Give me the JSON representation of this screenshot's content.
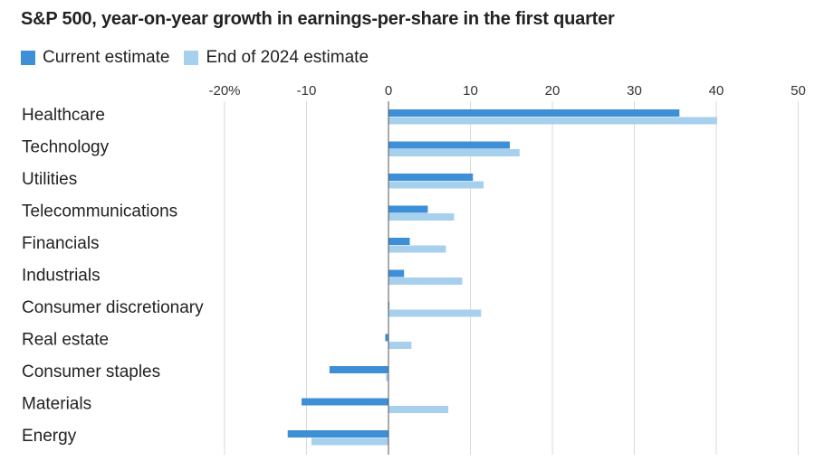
{
  "chart_data": {
    "type": "bar",
    "orientation": "horizontal",
    "title": "S&P 500, year-on-year growth in earnings-per-share in the first quarter",
    "xlabel": "",
    "ylabel": "",
    "xlim": [
      -20,
      50
    ],
    "grid": true,
    "legend_position": "top-left",
    "x_ticks": [
      -20,
      -10,
      0,
      10,
      20,
      30,
      40,
      50
    ],
    "x_tick_labels": [
      "-20%",
      "-10",
      "0",
      "10",
      "20",
      "30",
      "40",
      "50"
    ],
    "categories": [
      "Healthcare",
      "Technology",
      "Utilities",
      "Telecommunications",
      "Financials",
      "Industrials",
      "Consumer discretionary",
      "Real estate",
      "Consumer staples",
      "Materials",
      "Energy"
    ],
    "series": [
      {
        "name": "Current estimate",
        "color": "#3d8fd6",
        "values": [
          35.5,
          14.8,
          10.3,
          4.8,
          2.6,
          1.9,
          0.1,
          -0.4,
          -7.2,
          -10.6,
          -12.3
        ]
      },
      {
        "name": "End of 2024 estimate",
        "color": "#a7cfee",
        "values": [
          40.1,
          16.0,
          11.6,
          8.0,
          7.0,
          9.0,
          11.3,
          2.8,
          -0.3,
          7.3,
          -9.4
        ]
      }
    ]
  }
}
